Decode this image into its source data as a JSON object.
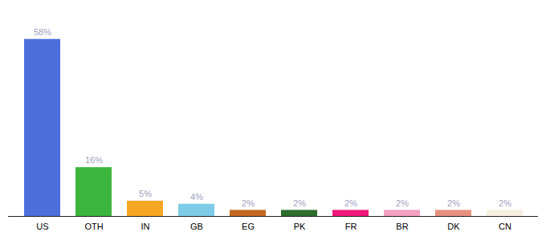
{
  "chart_data": {
    "type": "bar",
    "categories": [
      "US",
      "OTH",
      "IN",
      "GB",
      "EG",
      "PK",
      "FR",
      "BR",
      "DK",
      "CN"
    ],
    "values": [
      58,
      16,
      5,
      4,
      2,
      2,
      2,
      2,
      2,
      2
    ],
    "value_labels": [
      "58%",
      "16%",
      "5%",
      "4%",
      "2%",
      "2%",
      "2%",
      "2%",
      "2%",
      "2%"
    ],
    "colors": [
      "#4d6fdb",
      "#3db53d",
      "#f5a623",
      "#7ecce8",
      "#c46820",
      "#2d6e2d",
      "#f0187a",
      "#f4a0c0",
      "#e89080",
      "#f5f0e0"
    ],
    "ylim": [
      0,
      65
    ],
    "data_labels": true,
    "tick_labels": "x"
  }
}
